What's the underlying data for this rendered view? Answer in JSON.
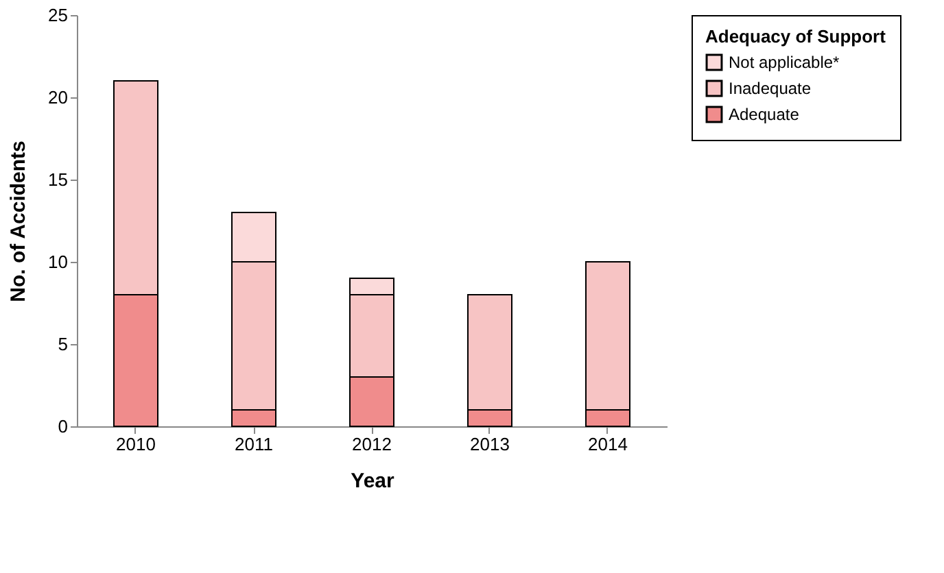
{
  "chart_data": {
    "type": "bar",
    "stacked": true,
    "xlabel": "Year",
    "ylabel": "No. of Accidents",
    "legend_title": "Adequacy of Support",
    "categories": [
      "2010",
      "2011",
      "2012",
      "2013",
      "2014"
    ],
    "series": [
      {
        "name": "Adequate",
        "color": "#f08c8c",
        "values": [
          8,
          1,
          3,
          1,
          1
        ]
      },
      {
        "name": "Inadequate",
        "color": "#f7c4c4",
        "values": [
          13,
          9,
          5,
          7,
          9
        ]
      },
      {
        "name": "Not applicable*",
        "color": "#fbdada",
        "values": [
          0,
          3,
          1,
          0,
          0
        ]
      }
    ],
    "ylim": [
      0,
      25
    ],
    "yticks": [
      0,
      5,
      10,
      15,
      20,
      25
    ],
    "grid": false,
    "legend": "right"
  }
}
